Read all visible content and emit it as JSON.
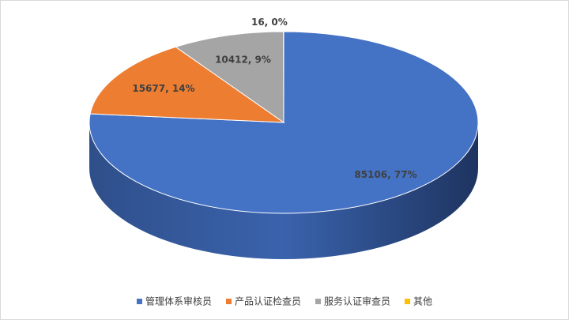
{
  "chart_data": {
    "type": "pie3d",
    "categories": [
      "管理体系审核员",
      "产品认证检查员",
      "服务认证审查员",
      "其他"
    ],
    "series": [
      {
        "values": [
          85106,
          15677,
          10412,
          16
        ],
        "value_labels": [
          "85106, 77%",
          "15677, 14%",
          "10412, 9%",
          "16, 0%"
        ],
        "colors": [
          "#4472c4",
          "#ed7d31",
          "#a5a5a5",
          "#ffc000"
        ]
      }
    ],
    "legend": "bottom"
  }
}
